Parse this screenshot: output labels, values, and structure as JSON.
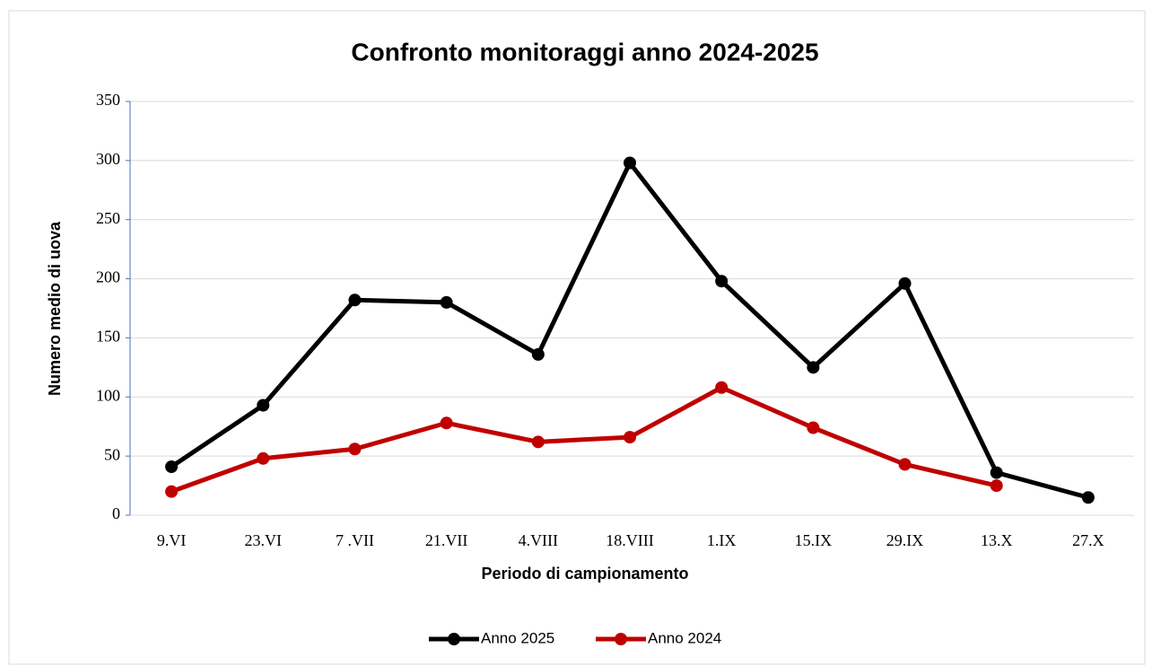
{
  "chart_data": {
    "type": "line",
    "title": "Confronto monitoraggi anno 2024-2025",
    "x_label": "Periodo di campionamento",
    "y_label": "Numero medio di uova",
    "categories": [
      "9.VI",
      "23.VI",
      "7 .VII",
      "21.VII",
      "4.VIII",
      "18.VIII",
      "1.IX",
      "15.IX",
      "29.IX",
      "13.X",
      "27.X"
    ],
    "series": [
      {
        "name": "Anno 2025",
        "color": "#000000",
        "values": [
          41,
          93,
          182,
          180,
          136,
          298,
          198,
          125,
          196,
          36,
          15
        ]
      },
      {
        "name": "Anno 2024",
        "color": "#c00000",
        "values": [
          20,
          48,
          56,
          78,
          62,
          66,
          108,
          74,
          43,
          25,
          null
        ]
      }
    ],
    "ylim": [
      0,
      350
    ],
    "yticks": [
      0,
      50,
      100,
      150,
      200,
      250,
      300,
      350
    ],
    "grid": true,
    "legend": "bottom"
  }
}
